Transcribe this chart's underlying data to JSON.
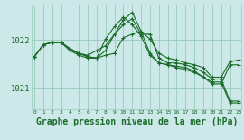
{
  "background_color": "#cce8e8",
  "grid_color": "#99ccbb",
  "line_color": "#1a6b2a",
  "xlabel": "Graphe pression niveau de la mer (hPa)",
  "xlabel_fontsize": 7,
  "xticks": [
    0,
    1,
    2,
    3,
    4,
    5,
    6,
    7,
    8,
    9,
    10,
    11,
    12,
    13,
    14,
    15,
    16,
    17,
    18,
    19,
    20,
    21,
    22,
    23
  ],
  "yticks": [
    1021,
    1022
  ],
  "ylim": [
    1020.55,
    1022.75
  ],
  "xlim": [
    -0.3,
    23.3
  ],
  "series": [
    [
      1021.65,
      1021.9,
      1021.95,
      1021.95,
      1021.78,
      1021.72,
      1021.65,
      1021.62,
      1021.68,
      1021.72,
      1022.05,
      1022.12,
      1022.18,
      1022.02,
      1021.72,
      1021.62,
      1021.58,
      1021.52,
      1021.48,
      1021.42,
      1021.22,
      1021.22,
      1021.55,
      1021.58
    ],
    [
      1021.65,
      1021.9,
      1021.95,
      1021.95,
      1021.82,
      1021.72,
      1021.65,
      1021.62,
      1021.78,
      1022.12,
      1022.32,
      1022.45,
      1022.12,
      1022.12,
      1021.62,
      1021.52,
      1021.52,
      1021.48,
      1021.42,
      1021.32,
      1021.18,
      1021.18,
      1020.72,
      1020.72
    ],
    [
      1021.65,
      1021.9,
      1021.95,
      1021.95,
      1021.78,
      1021.68,
      1021.62,
      1021.62,
      1022.02,
      1022.28,
      1022.48,
      1022.32,
      1022.08,
      1021.68,
      1021.52,
      1021.48,
      1021.45,
      1021.42,
      1021.35,
      1021.22,
      1021.12,
      1021.12,
      1020.68,
      1020.68
    ],
    [
      1021.65,
      1021.9,
      1021.95,
      1021.95,
      1021.82,
      1021.72,
      1021.68,
      1021.78,
      1021.88,
      1022.12,
      1022.42,
      1022.58,
      1022.18,
      1021.72,
      1021.52,
      1021.48,
      1021.42,
      1021.38,
      1021.32,
      1021.22,
      1021.08,
      1021.08,
      1021.48,
      1021.48
    ]
  ]
}
